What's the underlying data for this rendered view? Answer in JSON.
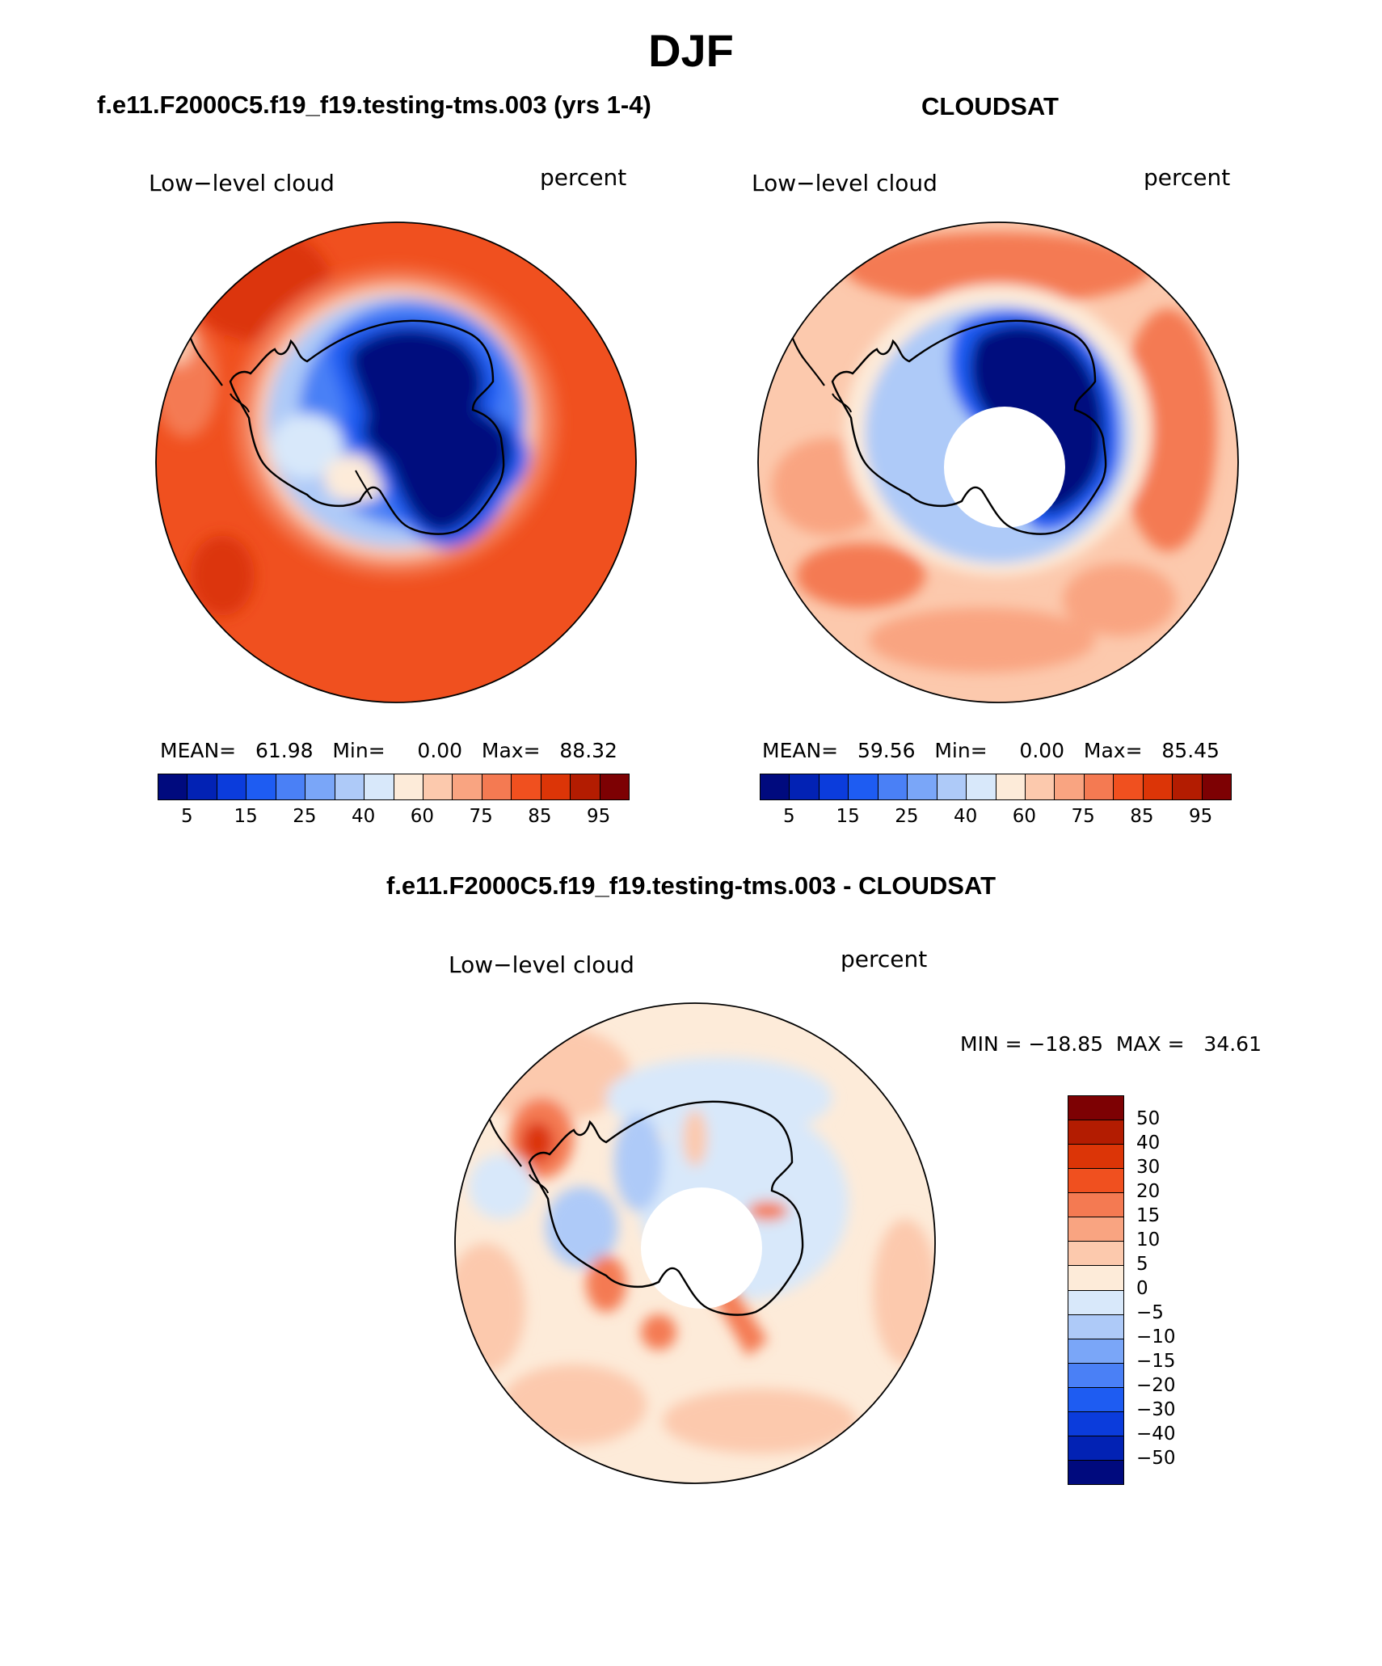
{
  "title": "DJF",
  "panels": {
    "model": {
      "title": "f.e11.F2000C5.f19_f19.testing-tms.003 (yrs 1-4)",
      "variable": "Low−level cloud",
      "units": "percent",
      "stats": "MEAN=   61.98   Min=     0.00   Max=   88.32"
    },
    "obs": {
      "title": "CLOUDSAT",
      "variable": "Low−level cloud",
      "units": "percent",
      "stats": "MEAN=   59.56   Min=     0.00   Max=   85.45"
    },
    "diff": {
      "title": "f.e11.F2000C5.f19_f19.testing-tms.003 - CLOUDSAT",
      "variable": "Low−level cloud",
      "units": "percent",
      "stats": "MIN = −18.85  MAX =   34.61"
    }
  },
  "colorbar_abs": {
    "colors": [
      "#000a7e",
      "#0222b4",
      "#0b3cdc",
      "#1e5cf2",
      "#4a80f6",
      "#7aa6f8",
      "#aecaf8",
      "#d8e8fa",
      "#fdebd9",
      "#fcc9ad",
      "#f9a481",
      "#f47a52",
      "#f0501f",
      "#dc3507",
      "#b31c01",
      "#7d0103"
    ],
    "labels": [
      "5",
      "15",
      "25",
      "40",
      "60",
      "75",
      "85",
      "95"
    ]
  },
  "colorbar_diff": {
    "colors": [
      "#7d0103",
      "#b31c01",
      "#dc3507",
      "#f0501f",
      "#f47a52",
      "#f9a481",
      "#fcc9ad",
      "#fdebd9",
      "#d8e8fa",
      "#aecaf8",
      "#7aa6f8",
      "#4a80f6",
      "#1e5cf2",
      "#0b3cdc",
      "#0222b4",
      "#000a7e"
    ],
    "labels": [
      "50",
      "40",
      "30",
      "20",
      "15",
      "10",
      "5",
      "0",
      "−5",
      "−10",
      "−15",
      "−20",
      "−30",
      "−40",
      "−50"
    ]
  }
}
